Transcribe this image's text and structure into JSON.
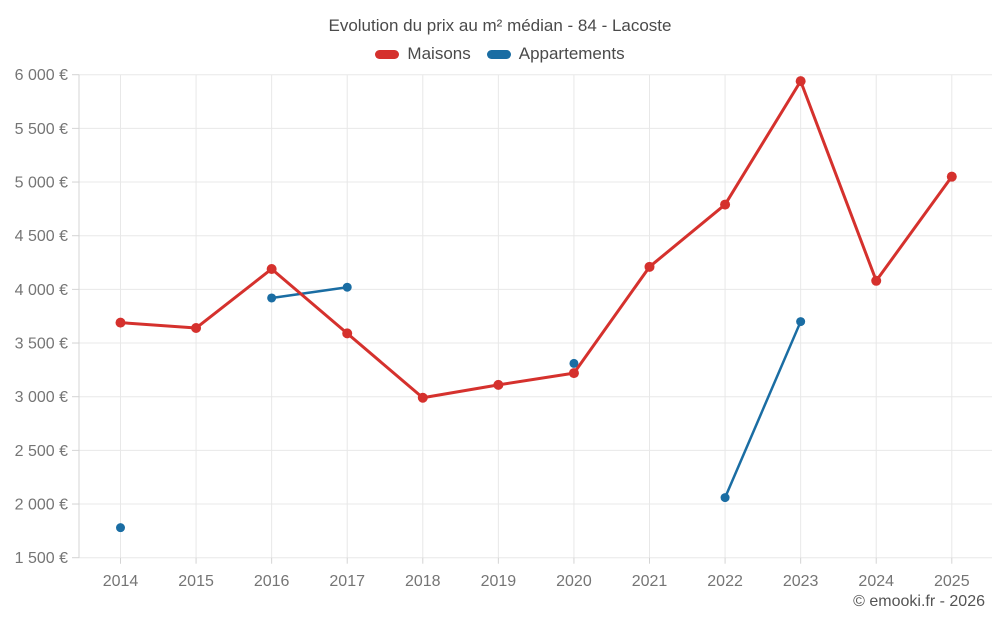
{
  "title": "Evolution du prix au m² médian - 84 - Lacoste",
  "footer": "© emooki.fr - 2026",
  "legend": {
    "items": [
      {
        "label": "Maisons",
        "color": "#d5312d"
      },
      {
        "label": "Appartements",
        "color": "#1a6da3"
      }
    ]
  },
  "chart_data": {
    "type": "line",
    "title": "Evolution du prix au m² médian - 84 - Lacoste",
    "x": [
      2014,
      2015,
      2016,
      2017,
      2018,
      2019,
      2020,
      2021,
      2022,
      2023,
      2024,
      2025
    ],
    "series": [
      {
        "name": "Maisons",
        "color": "#d5312d",
        "line_width": 3,
        "point_radius": 5,
        "values": [
          3690,
          3640,
          4190,
          3590,
          2990,
          3110,
          3220,
          4210,
          4790,
          5940,
          4080,
          5050
        ]
      },
      {
        "name": "Appartements",
        "color": "#1a6da3",
        "line_width": 2.5,
        "point_radius": 4.5,
        "values": [
          1780,
          null,
          3920,
          4020,
          null,
          null,
          3310,
          null,
          2060,
          3700,
          null,
          null
        ]
      }
    ],
    "xlabel": "",
    "ylabel": "",
    "ylim": [
      1500,
      6000
    ],
    "y_ticks": [
      {
        "value": 1500,
        "label": "1 500 €"
      },
      {
        "value": 2000,
        "label": "2 000 €"
      },
      {
        "value": 2500,
        "label": "2 500 €"
      },
      {
        "value": 3000,
        "label": "3 000 €"
      },
      {
        "value": 3500,
        "label": "3 500 €"
      },
      {
        "value": 4000,
        "label": "4 000 €"
      },
      {
        "value": 4500,
        "label": "4 500 €"
      },
      {
        "value": 5000,
        "label": "5 000 €"
      },
      {
        "value": 5500,
        "label": "5 500 €"
      },
      {
        "value": 6000,
        "label": "6 000 €"
      }
    ],
    "grid": true,
    "legend_position": "top"
  }
}
